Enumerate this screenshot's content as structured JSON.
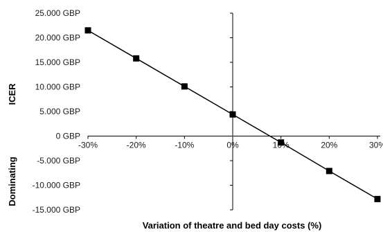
{
  "chart_data": {
    "type": "line",
    "x_categories": [
      "-30%",
      "-20%",
      "-10%",
      "0%",
      "10%",
      "20%",
      "30%"
    ],
    "x_values": [
      -30,
      -20,
      -10,
      0,
      10,
      20,
      30
    ],
    "series": [
      {
        "values": [
          21500,
          15800,
          10100,
          4400,
          -1300,
          -7100,
          -12800
        ]
      }
    ],
    "ylim": [
      -15000,
      25000
    ],
    "y_ticks": [
      25000,
      20000,
      15000,
      10000,
      5000,
      0,
      -5000,
      -10000,
      -15000
    ],
    "y_tick_labels": [
      "25.000 GBP",
      "20.000 GBP",
      "15.000 GBP",
      "10.000 GBP",
      "5.000 GBP",
      "0 GBP",
      "-5.000 GBP",
      "-10.000 GBP",
      "-15.000 GBP"
    ],
    "xlabel": "Variation of theatre and bed day costs (%)",
    "ylabel_upper": "ICER",
    "ylabel_lower": "Dominating",
    "grid": false,
    "legend": "none",
    "colors": {
      "line": "#000000",
      "marker": "#000000",
      "axis": "#000000"
    },
    "marker": "square"
  }
}
